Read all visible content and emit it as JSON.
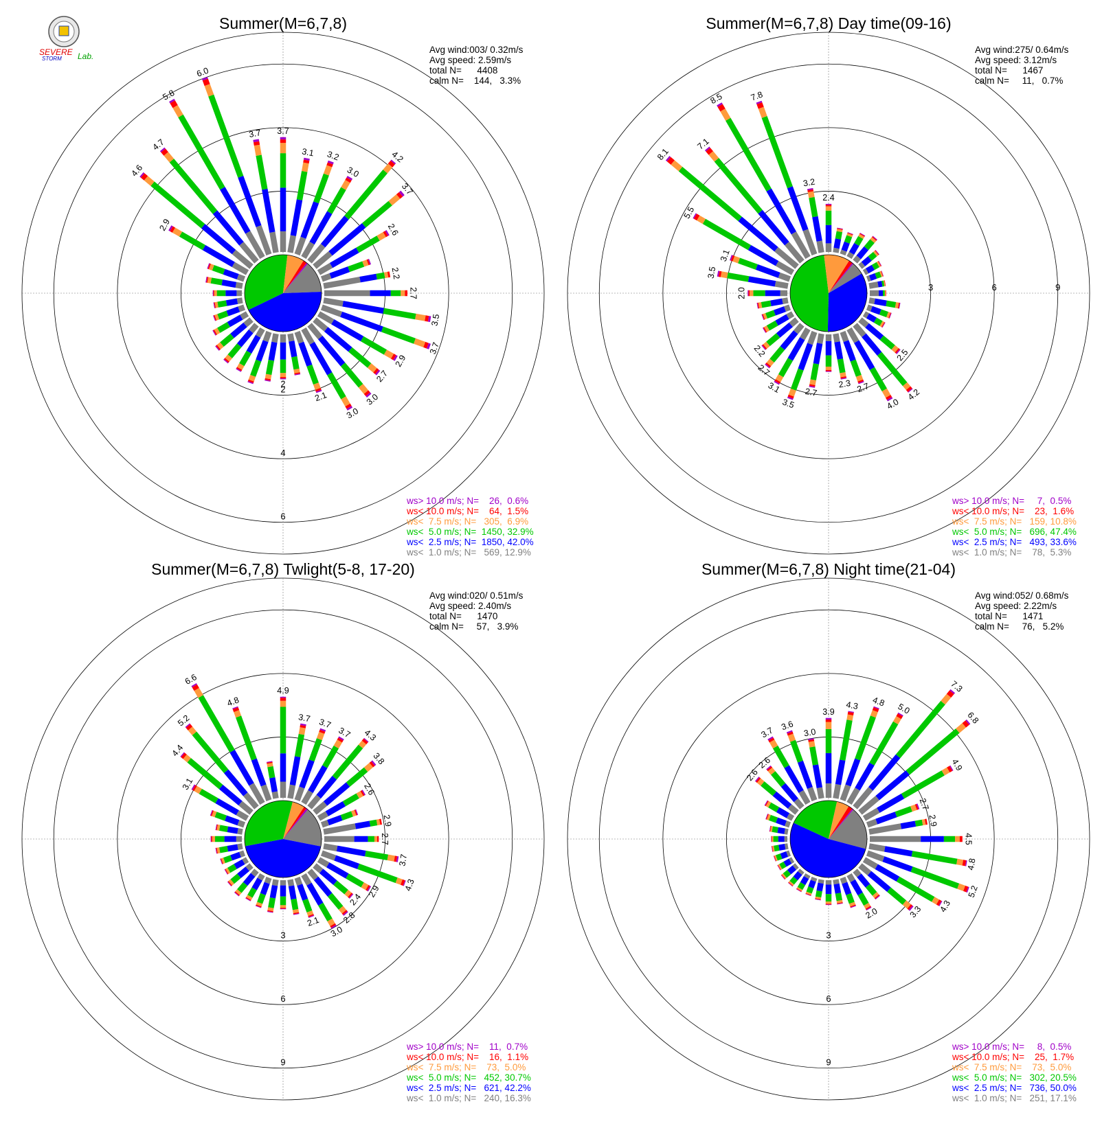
{
  "logo": {
    "text_a": "SEVERE",
    "text_b": "STORM",
    "text_c": "Lab."
  },
  "colors": {
    "calm": "#ffffff",
    "c1": "#808080",
    "c2": "#0000ff",
    "c3": "#00c800",
    "c4": "#ff9a3c",
    "c5": "#ff0000",
    "c6": "#a000c8"
  },
  "chart_data": [
    {
      "type": "wind-rose",
      "title": "Summer(M=6,7,8)",
      "stats": [
        "Avg wind:003/ 0.32m/s",
        "Avg speed: 2.59m/s",
        "total N=      4408",
        "calm N=    144,   3.3%"
      ],
      "ring_labels": [
        "2",
        "4",
        "6"
      ],
      "ring_values": [
        2,
        4,
        6
      ],
      "radial_max": 7,
      "legend": [
        {
          "text": "ws> 10.0 m/s; N=    26,  0.6%",
          "color": "#a000c8"
        },
        {
          "text": "ws< 10.0 m/s; N=    64,  1.5%",
          "color": "#ff0000"
        },
        {
          "text": "ws<  7.5 m/s; N=   305,  6.9%",
          "color": "#ff9a3c"
        },
        {
          "text": "ws<  5.0 m/s; N=  1450, 32.9%",
          "color": "#00c800"
        },
        {
          "text": "ws<  2.5 m/s; N=  1850, 42.0%",
          "color": "#0000ff"
        },
        {
          "text": "ws<  1.0 m/s; N=   569, 12.9%",
          "color": "#808080"
        }
      ],
      "directions_deg": [
        0,
        10,
        20,
        30,
        40,
        50,
        60,
        70,
        80,
        90,
        100,
        110,
        120,
        130,
        140,
        150,
        160,
        170,
        180,
        190,
        200,
        210,
        220,
        230,
        240,
        250,
        260,
        270,
        280,
        290,
        300,
        310,
        320,
        330,
        340,
        350
      ],
      "bar_labels": [
        "3.7",
        "3.1",
        "3.2",
        "3.0",
        "4.2",
        "3.7",
        "2.6",
        "",
        "2.2",
        "2.7",
        "3.5",
        "3.7",
        "2.9",
        "2.7",
        "3.0",
        "3.0",
        "2.1",
        "",
        "2",
        "",
        "",
        "",
        "",
        "",
        "",
        "",
        "",
        "",
        "",
        "",
        "2.9",
        "4.6",
        "4.7",
        "5.8",
        "6.0",
        "3.7"
      ],
      "bar_totals": [
        3.7,
        3.1,
        3.2,
        3.0,
        4.2,
        3.7,
        2.6,
        1.7,
        2.2,
        2.7,
        3.5,
        3.7,
        2.9,
        2.7,
        3.0,
        3.0,
        2.1,
        1.4,
        1.5,
        1.6,
        1.8,
        1.6,
        1.6,
        1.5,
        1.3,
        1.1,
        1.0,
        1.0,
        1.25,
        1.3,
        2.9,
        4.6,
        4.7,
        5.8,
        6.0,
        3.7
      ],
      "pie_fractions": [
        0.129,
        0.42,
        0.329,
        0.069,
        0.015,
        0.006
      ]
    },
    {
      "type": "wind-rose",
      "title": "Summer(M=6,7,8) Day time(09-16)",
      "stats": [
        "Avg wind:275/ 0.64m/s",
        "Avg speed: 3.12m/s",
        "total N=      1467",
        "calm N=     11,   0.7%"
      ],
      "ring_labels": [
        "3",
        "6",
        "9"
      ],
      "ring_values": [
        3,
        6,
        9
      ],
      "radial_max": 10.5,
      "legend": [
        {
          "text": "ws> 10.0 m/s; N=     7,  0.5%",
          "color": "#a000c8"
        },
        {
          "text": "ws< 10.0 m/s; N=    23,  1.6%",
          "color": "#ff0000"
        },
        {
          "text": "ws<  7.5 m/s; N=   159, 10.8%",
          "color": "#ff9a3c"
        },
        {
          "text": "ws<  5.0 m/s; N=   696, 47.4%",
          "color": "#00c800"
        },
        {
          "text": "ws<  2.5 m/s; N=   493, 33.6%",
          "color": "#0000ff"
        },
        {
          "text": "ws<  1.0 m/s; N=    78,  5.3%",
          "color": "#808080"
        }
      ],
      "directions_deg": [
        0,
        10,
        20,
        30,
        40,
        50,
        60,
        70,
        80,
        90,
        100,
        110,
        120,
        130,
        140,
        150,
        160,
        170,
        180,
        190,
        200,
        210,
        220,
        230,
        240,
        250,
        260,
        270,
        280,
        290,
        300,
        310,
        320,
        330,
        340,
        350
      ],
      "bar_labels": [
        "2.4",
        "",
        "",
        "",
        "",
        "",
        "",
        "",
        "",
        "",
        "",
        "",
        "",
        "2.5",
        "4.2",
        "4.0",
        "2.7",
        "2.3",
        "",
        "2.7",
        "3.5",
        "3.1",
        "2.7",
        "2.2",
        "",
        "",
        "",
        "2.0",
        "3.5",
        "3.1",
        "5.5",
        "8.1",
        "7.1",
        "8.5",
        "7.8",
        "3.2"
      ],
      "bar_totals": [
        2.4,
        1.3,
        1.2,
        1.4,
        1.6,
        1.2,
        1.0,
        0.9,
        0.9,
        0.9,
        1.6,
        1.3,
        1.2,
        2.5,
        4.2,
        4.0,
        2.7,
        2.3,
        1.9,
        2.7,
        3.5,
        3.1,
        2.7,
        2.2,
        1.7,
        1.5,
        1.6,
        2.0,
        3.5,
        3.1,
        5.5,
        8.1,
        7.1,
        8.5,
        7.8,
        3.2
      ],
      "pie_fractions": [
        0.053,
        0.336,
        0.474,
        0.108,
        0.016,
        0.005
      ]
    },
    {
      "type": "wind-rose",
      "title": "Summer(M=6,7,8) Twlight(5-8, 17-20)",
      "stats": [
        "Avg wind:020/ 0.51m/s",
        "Avg speed: 2.40m/s",
        "total N=      1470",
        "calm N=     57,   3.9%"
      ],
      "ring_labels": [
        "3",
        "6",
        "9"
      ],
      "ring_values": [
        3,
        6,
        9
      ],
      "radial_max": 10.5,
      "legend": [
        {
          "text": "ws> 10.0 m/s; N=    11,  0.7%",
          "color": "#a000c8"
        },
        {
          "text": "ws< 10.0 m/s; N=    16,  1.1%",
          "color": "#ff0000"
        },
        {
          "text": "ws<  7.5 m/s; N=    73,  5.0%",
          "color": "#ff9a3c"
        },
        {
          "text": "ws<  5.0 m/s; N=   452, 30.7%",
          "color": "#00c800"
        },
        {
          "text": "ws<  2.5 m/s; N=   621, 42.2%",
          "color": "#0000ff"
        },
        {
          "text": "ws<  1.0 m/s; N=   240, 16.3%",
          "color": "#808080"
        }
      ],
      "directions_deg": [
        0,
        10,
        20,
        30,
        40,
        50,
        60,
        70,
        80,
        90,
        100,
        110,
        120,
        130,
        140,
        150,
        160,
        170,
        180,
        190,
        200,
        210,
        220,
        230,
        240,
        250,
        260,
        270,
        280,
        290,
        300,
        310,
        320,
        330,
        340,
        350
      ],
      "bar_labels": [
        "4.9",
        "3.7",
        "3.7",
        "3.7",
        "4.3",
        "3.8",
        "2.6",
        "",
        "2.9",
        "2.7",
        "3.7",
        "4.3",
        "2.9",
        "2.4",
        "2.8",
        "3.0",
        "2.1",
        "",
        "",
        "",
        "",
        "",
        "",
        "",
        "",
        "",
        "",
        "",
        "",
        "",
        "3.1",
        "4.4",
        "5.2",
        "6.6",
        "4.8",
        ""
      ],
      "bar_totals": [
        4.9,
        3.7,
        3.7,
        3.7,
        4.3,
        3.8,
        2.6,
        1.9,
        2.9,
        2.7,
        3.7,
        4.3,
        2.9,
        2.4,
        2.8,
        3.0,
        2.1,
        1.8,
        1.5,
        1.7,
        1.6,
        1.5,
        1.6,
        1.5,
        1.3,
        1.3,
        1.4,
        1.6,
        1.4,
        1.8,
        3.1,
        4.4,
        5.2,
        6.6,
        4.8,
        1.9
      ],
      "pie_fractions": [
        0.163,
        0.422,
        0.307,
        0.05,
        0.011,
        0.007
      ]
    },
    {
      "type": "wind-rose",
      "title": "Summer(M=6,7,8) Night time(21-04)",
      "stats": [
        "Avg wind:052/ 0.68m/s",
        "Avg speed: 2.22m/s",
        "total N=      1471",
        "calm N=     76,   5.2%"
      ],
      "ring_labels": [
        "3",
        "6",
        "9"
      ],
      "ring_values": [
        3,
        6,
        9
      ],
      "radial_max": 10.5,
      "legend": [
        {
          "text": "ws> 10.0 m/s; N=     8,  0.5%",
          "color": "#a000c8"
        },
        {
          "text": "ws< 10.0 m/s; N=    25,  1.7%",
          "color": "#ff0000"
        },
        {
          "text": "ws<  7.5 m/s; N=    73,  5.0%",
          "color": "#ff9a3c"
        },
        {
          "text": "ws<  5.0 m/s; N=   302, 20.5%",
          "color": "#00c800"
        },
        {
          "text": "ws<  2.5 m/s; N=   736, 50.0%",
          "color": "#0000ff"
        },
        {
          "text": "ws<  1.0 m/s; N=   251, 17.1%",
          "color": "#808080"
        }
      ],
      "directions_deg": [
        0,
        10,
        20,
        30,
        40,
        50,
        60,
        70,
        80,
        90,
        100,
        110,
        120,
        130,
        140,
        150,
        160,
        170,
        180,
        190,
        200,
        210,
        220,
        230,
        240,
        250,
        260,
        270,
        280,
        290,
        300,
        310,
        320,
        330,
        340,
        350
      ],
      "bar_labels": [
        "3.9",
        "4.3",
        "4.8",
        "5.0",
        "7.3",
        "6.8",
        "4.9",
        "2.7",
        "2.9",
        "4.5",
        "4.8",
        "5.2",
        "4.3",
        "3.3",
        "",
        "2.0",
        "",
        "",
        "",
        "",
        "",
        "",
        "",
        "",
        "",
        "",
        "",
        "",
        "",
        "",
        "",
        "2.6",
        "2.6",
        "3.7",
        "3.6",
        "3.0"
      ],
      "bar_totals": [
        3.9,
        4.3,
        4.8,
        5.0,
        7.3,
        6.8,
        4.9,
        2.7,
        2.9,
        4.5,
        4.8,
        5.2,
        4.3,
        3.3,
        1.8,
        2.0,
        1.6,
        1.3,
        1.3,
        1.1,
        1.0,
        1.0,
        1.0,
        1.0,
        0.9,
        0.9,
        0.9,
        0.9,
        1.0,
        1.3,
        1.6,
        2.6,
        2.6,
        3.7,
        3.6,
        3.0
      ],
      "pie_fractions": [
        0.171,
        0.5,
        0.205,
        0.05,
        0.017,
        0.005
      ]
    }
  ]
}
